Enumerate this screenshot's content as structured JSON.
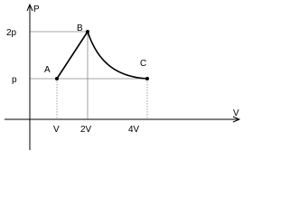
{
  "axes": {
    "y_label": "P",
    "x_label": "V"
  },
  "y_ticks": [
    "2p",
    "p"
  ],
  "x_ticks": [
    "V",
    "2V",
    "4V"
  ],
  "points": [
    {
      "label": "A"
    },
    {
      "label": "B"
    },
    {
      "label": "C"
    }
  ]
}
